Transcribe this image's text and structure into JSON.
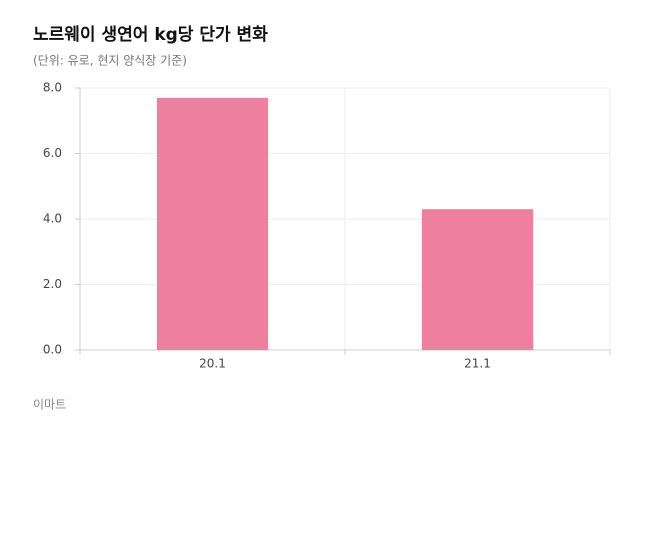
{
  "chart_data": {
    "type": "bar",
    "title": "노르웨이 생연어 kg당 단가 변화",
    "subtitle": "(단위: 유로, 현지 양식장 기준)",
    "source": "이마트",
    "categories": [
      "20.1",
      "21.1"
    ],
    "values": [
      7.7,
      4.3
    ],
    "color": "#ee7f9f",
    "ylim": [
      0,
      8
    ],
    "yticks": [
      {
        "value": 0,
        "label": "0.0"
      },
      {
        "value": 2,
        "label": "2.0"
      },
      {
        "value": 4,
        "label": "4.0"
      },
      {
        "value": 6,
        "label": "6.0"
      },
      {
        "value": 8,
        "label": "8.0"
      }
    ],
    "grid": true
  }
}
